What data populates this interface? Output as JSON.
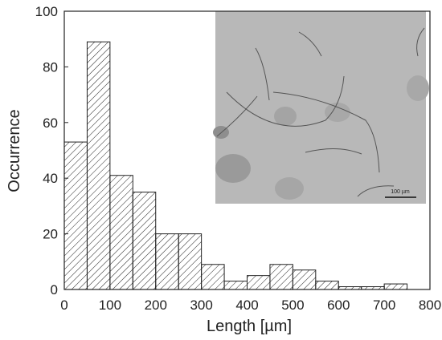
{
  "chart_data": {
    "type": "histogram",
    "x_label": "Length [µm]",
    "y_label": "Occurrence",
    "bins": [
      0,
      50,
      100,
      150,
      200,
      250,
      300,
      350,
      400,
      450,
      500,
      550,
      600,
      650,
      700,
      750
    ],
    "values": [
      53,
      89,
      41,
      35,
      20,
      20,
      9,
      3,
      5,
      9,
      7,
      3,
      1,
      1,
      2
    ],
    "xlim": [
      0,
      800
    ],
    "xticks": [
      0,
      100,
      200,
      300,
      400,
      500,
      600,
      700,
      800
    ],
    "ylim": [
      0,
      100
    ],
    "yticks": [
      0,
      20,
      40,
      60,
      80,
      100
    ],
    "annotation": "100 µm"
  }
}
